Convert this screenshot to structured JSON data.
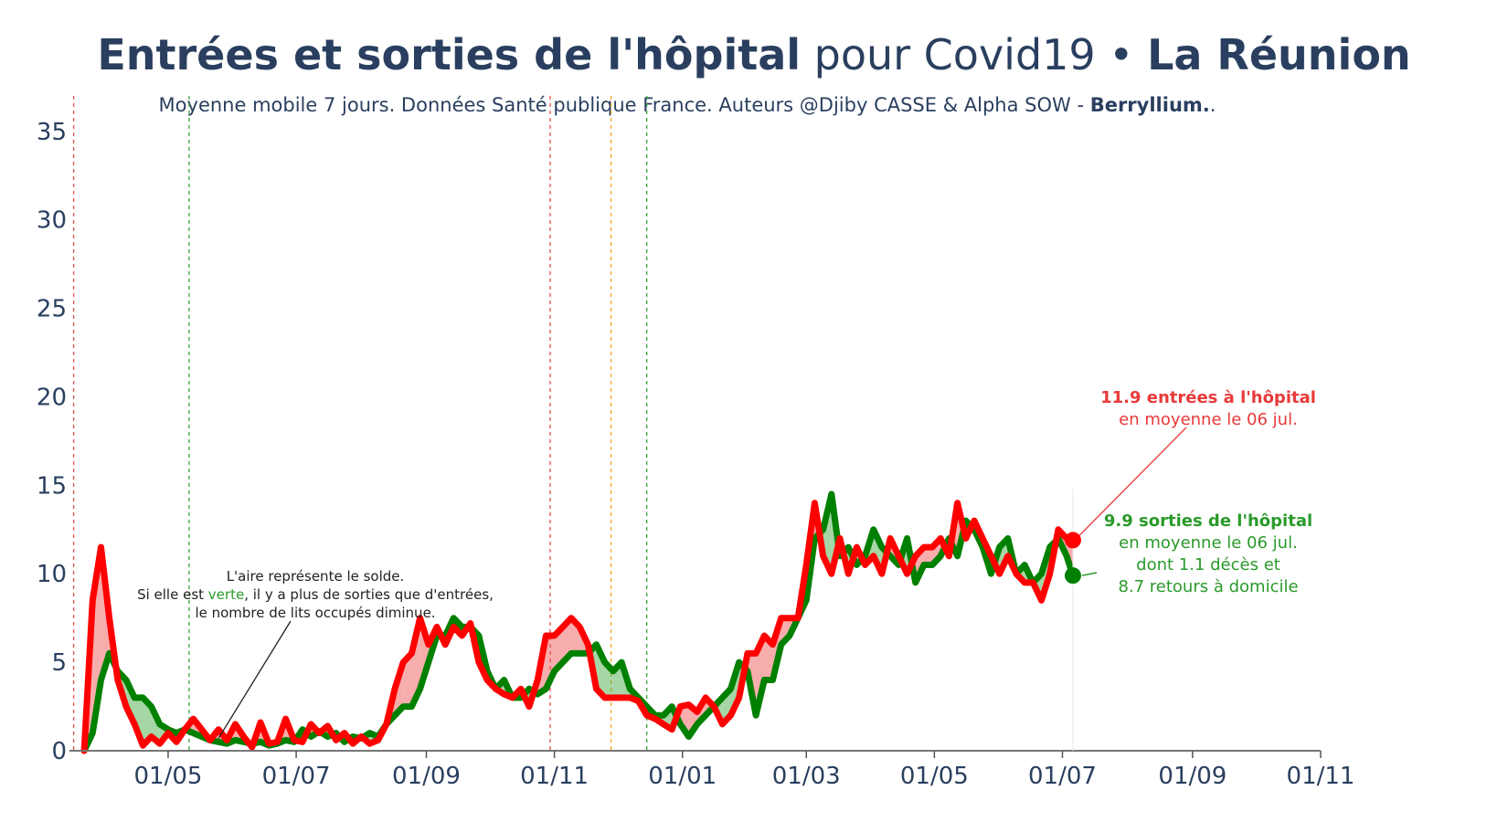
{
  "header": {
    "title_bold": "Entrées et sorties de l'hôpital",
    "title_mid": " pour Covid19 • ",
    "title_region": "La Réunion",
    "subtitle_text": "Moyenne mobile 7 jours. Données Santé publique France. Auteurs @Djiby CASSE & Alpha SOW - ",
    "subtitle_bold": "Berryllium.",
    "subtitle_end": "."
  },
  "annotations": {
    "solde_line1": "L'aire représente le solde.",
    "solde_line2_a": "Si elle est ",
    "solde_line2_green": "verte",
    "solde_line2_b": ", il y a plus de sorties que d'entrées,",
    "solde_line3": "le nombre de lits occupés diminue.",
    "entrees_bold": "11.9 entrées à l'hôpital",
    "entrees_sub": "en moyenne le 06 jul.",
    "sorties_bold": "9.9 sorties de l'hôpital",
    "sorties_sub1": "en moyenne le 06 jul.",
    "sorties_sub2": "dont 1.1 décès et",
    "sorties_sub3": "8.7 retours à domicile"
  },
  "chart_data": {
    "type": "line",
    "x_unit": "date",
    "x_range": [
      "2020-03-15",
      "2021-11-01"
    ],
    "ylim": [
      0,
      37
    ],
    "y_ticks": [
      0,
      5,
      10,
      15,
      20,
      25,
      30,
      35
    ],
    "x_ticks": [
      {
        "date": "2020-05-01",
        "label": "01/05"
      },
      {
        "date": "2020-07-01",
        "label": "01/07"
      },
      {
        "date": "2020-09-01",
        "label": "01/09"
      },
      {
        "date": "2020-11-01",
        "label": "01/11"
      },
      {
        "date": "2021-01-01",
        "label": "01/01"
      },
      {
        "date": "2021-03-01",
        "label": "01/03"
      },
      {
        "date": "2021-05-01",
        "label": "01/05"
      },
      {
        "date": "2021-07-01",
        "label": "01/07"
      },
      {
        "date": "2021-09-01",
        "label": "01/09"
      },
      {
        "date": "2021-11-01",
        "label": "01/11"
      }
    ],
    "vertical_markers": [
      {
        "date": "2020-03-17",
        "color": "#e84c4c"
      },
      {
        "date": "2020-05-11",
        "color": "#3aa33a"
      },
      {
        "date": "2020-10-30",
        "color": "#e84c4c"
      },
      {
        "date": "2020-11-28",
        "color": "#f5a623"
      },
      {
        "date": "2020-12-15",
        "color": "#3aa33a"
      }
    ],
    "series": [
      {
        "color": "#ff0000",
        "points": [
          [
            "2020-03-22",
            0
          ],
          [
            "2020-03-26",
            8.5
          ],
          [
            "2020-03-30",
            11.5
          ],
          [
            "2020-04-03",
            7.5
          ],
          [
            "2020-04-07",
            4
          ],
          [
            "2020-04-11",
            2.5
          ],
          [
            "2020-04-15",
            1.5
          ],
          [
            "2020-04-19",
            0.3
          ],
          [
            "2020-04-23",
            0.8
          ],
          [
            "2020-04-27",
            0.4
          ],
          [
            "2020-05-01",
            1
          ],
          [
            "2020-05-05",
            0.5
          ],
          [
            "2020-05-09",
            1.2
          ],
          [
            "2020-05-13",
            1.8
          ],
          [
            "2020-05-17",
            1.2
          ],
          [
            "2020-05-21",
            0.6
          ],
          [
            "2020-05-25",
            1.2
          ],
          [
            "2020-05-29",
            0.6
          ],
          [
            "2020-06-02",
            1.5
          ],
          [
            "2020-06-06",
            0.8
          ],
          [
            "2020-06-10",
            0.2
          ],
          [
            "2020-06-14",
            1.6
          ],
          [
            "2020-06-18",
            0.4
          ],
          [
            "2020-06-22",
            0.5
          ],
          [
            "2020-06-26",
            1.8
          ],
          [
            "2020-06-30",
            0.6
          ],
          [
            "2020-07-04",
            0.5
          ],
          [
            "2020-07-08",
            1.5
          ],
          [
            "2020-07-12",
            1
          ],
          [
            "2020-07-16",
            1.4
          ],
          [
            "2020-07-20",
            0.6
          ],
          [
            "2020-07-24",
            1
          ],
          [
            "2020-07-28",
            0.4
          ],
          [
            "2020-08-01",
            0.8
          ],
          [
            "2020-08-05",
            0.4
          ],
          [
            "2020-08-09",
            0.6
          ],
          [
            "2020-08-13",
            1.5
          ],
          [
            "2020-08-17",
            3.5
          ],
          [
            "2020-08-21",
            5
          ],
          [
            "2020-08-25",
            5.5
          ],
          [
            "2020-08-29",
            7.5
          ],
          [
            "2020-09-02",
            6
          ],
          [
            "2020-09-06",
            7
          ],
          [
            "2020-09-10",
            6
          ],
          [
            "2020-09-14",
            7
          ],
          [
            "2020-09-18",
            6.5
          ],
          [
            "2020-09-22",
            7.2
          ],
          [
            "2020-09-26",
            5
          ],
          [
            "2020-09-30",
            4
          ],
          [
            "2020-10-04",
            3.5
          ],
          [
            "2020-10-08",
            3.2
          ],
          [
            "2020-10-12",
            3
          ],
          [
            "2020-10-16",
            3.5
          ],
          [
            "2020-10-20",
            2.5
          ],
          [
            "2020-10-24",
            4
          ],
          [
            "2020-10-28",
            6.5
          ],
          [
            "2020-11-01",
            6.5
          ],
          [
            "2020-11-05",
            7
          ],
          [
            "2020-11-09",
            7.5
          ],
          [
            "2020-11-13",
            7
          ],
          [
            "2020-11-17",
            6
          ],
          [
            "2020-11-21",
            3.5
          ],
          [
            "2020-11-25",
            3
          ],
          [
            "2020-11-29",
            3
          ],
          [
            "2020-12-03",
            3
          ],
          [
            "2020-12-07",
            3
          ],
          [
            "2020-12-11",
            2.8
          ],
          [
            "2020-12-15",
            2
          ],
          [
            "2020-12-19",
            1.8
          ],
          [
            "2020-12-23",
            1.5
          ],
          [
            "2020-12-27",
            1.2
          ],
          [
            "2020-12-31",
            2.5
          ],
          [
            "2021-01-04",
            2.6
          ],
          [
            "2021-01-08",
            2.2
          ],
          [
            "2021-01-12",
            3
          ],
          [
            "2021-01-16",
            2.5
          ],
          [
            "2021-01-20",
            1.5
          ],
          [
            "2021-01-24",
            2
          ],
          [
            "2021-01-28",
            3
          ],
          [
            "2021-02-01",
            5.5
          ],
          [
            "2021-02-05",
            5.5
          ],
          [
            "2021-02-09",
            6.5
          ],
          [
            "2021-02-13",
            6
          ],
          [
            "2021-02-17",
            7.5
          ],
          [
            "2021-02-21",
            7.5
          ],
          [
            "2021-02-25",
            7.5
          ],
          [
            "2021-03-01",
            10.5
          ],
          [
            "2021-03-05",
            14
          ],
          [
            "2021-03-09",
            11
          ],
          [
            "2021-03-13",
            10
          ],
          [
            "2021-03-17",
            12
          ],
          [
            "2021-03-21",
            10
          ],
          [
            "2021-03-25",
            11.5
          ],
          [
            "2021-03-29",
            10.5
          ],
          [
            "2021-04-02",
            11
          ],
          [
            "2021-04-06",
            10
          ],
          [
            "2021-04-10",
            12
          ],
          [
            "2021-04-14",
            11
          ],
          [
            "2021-04-18",
            10
          ],
          [
            "2021-04-22",
            11
          ],
          [
            "2021-04-26",
            11.5
          ],
          [
            "2021-04-30",
            11.5
          ],
          [
            "2021-05-04",
            12
          ],
          [
            "2021-05-08",
            11
          ],
          [
            "2021-05-12",
            14
          ],
          [
            "2021-05-16",
            12
          ],
          [
            "2021-05-20",
            13
          ],
          [
            "2021-05-24",
            12
          ],
          [
            "2021-05-28",
            11
          ],
          [
            "2021-06-01",
            10
          ],
          [
            "2021-06-05",
            11
          ],
          [
            "2021-06-09",
            10
          ],
          [
            "2021-06-13",
            9.5
          ],
          [
            "2021-06-17",
            9.5
          ],
          [
            "2021-06-21",
            8.5
          ],
          [
            "2021-06-25",
            10
          ],
          [
            "2021-06-29",
            12.5
          ],
          [
            "2021-07-03",
            12
          ],
          [
            "2021-07-06",
            11.9
          ]
        ]
      },
      {
        "color": "#008000",
        "points": [
          [
            "2020-03-22",
            0
          ],
          [
            "2020-03-26",
            1
          ],
          [
            "2020-03-30",
            4
          ],
          [
            "2020-04-03",
            5.5
          ],
          [
            "2020-04-07",
            4.5
          ],
          [
            "2020-04-11",
            4
          ],
          [
            "2020-04-15",
            3
          ],
          [
            "2020-04-19",
            3
          ],
          [
            "2020-04-23",
            2.5
          ],
          [
            "2020-04-27",
            1.5
          ],
          [
            "2020-05-01",
            1.2
          ],
          [
            "2020-05-05",
            1
          ],
          [
            "2020-05-09",
            1.2
          ],
          [
            "2020-05-13",
            1
          ],
          [
            "2020-05-17",
            0.8
          ],
          [
            "2020-05-21",
            0.6
          ],
          [
            "2020-05-25",
            0.5
          ],
          [
            "2020-05-29",
            0.4
          ],
          [
            "2020-06-02",
            0.6
          ],
          [
            "2020-06-06",
            0.5
          ],
          [
            "2020-06-10",
            0.4
          ],
          [
            "2020-06-14",
            0.5
          ],
          [
            "2020-06-18",
            0.3
          ],
          [
            "2020-06-22",
            0.4
          ],
          [
            "2020-06-26",
            0.6
          ],
          [
            "2020-06-30",
            0.5
          ],
          [
            "2020-07-04",
            1.2
          ],
          [
            "2020-07-08",
            0.8
          ],
          [
            "2020-07-12",
            1.1
          ],
          [
            "2020-07-16",
            0.8
          ],
          [
            "2020-07-20",
            1
          ],
          [
            "2020-07-24",
            0.5
          ],
          [
            "2020-07-28",
            0.8
          ],
          [
            "2020-08-01",
            0.7
          ],
          [
            "2020-08-05",
            1
          ],
          [
            "2020-08-09",
            0.8
          ],
          [
            "2020-08-13",
            1.5
          ],
          [
            "2020-08-17",
            2
          ],
          [
            "2020-08-21",
            2.5
          ],
          [
            "2020-08-25",
            2.5
          ],
          [
            "2020-08-29",
            3.5
          ],
          [
            "2020-09-02",
            5
          ],
          [
            "2020-09-06",
            6.5
          ],
          [
            "2020-09-10",
            6.5
          ],
          [
            "2020-09-14",
            7.5
          ],
          [
            "2020-09-18",
            7
          ],
          [
            "2020-09-22",
            7
          ],
          [
            "2020-09-26",
            6.5
          ],
          [
            "2020-09-30",
            4.5
          ],
          [
            "2020-10-04",
            3.5
          ],
          [
            "2020-10-08",
            4
          ],
          [
            "2020-10-12",
            3
          ],
          [
            "2020-10-16",
            3
          ],
          [
            "2020-10-20",
            3.5
          ],
          [
            "2020-10-24",
            3.2
          ],
          [
            "2020-10-28",
            3.5
          ],
          [
            "2020-11-01",
            4.5
          ],
          [
            "2020-11-05",
            5
          ],
          [
            "2020-11-09",
            5.5
          ],
          [
            "2020-11-13",
            5.5
          ],
          [
            "2020-11-17",
            5.5
          ],
          [
            "2020-11-21",
            6
          ],
          [
            "2020-11-25",
            5
          ],
          [
            "2020-11-29",
            4.5
          ],
          [
            "2020-12-03",
            5
          ],
          [
            "2020-12-07",
            3.5
          ],
          [
            "2020-12-11",
            3
          ],
          [
            "2020-12-15",
            2.5
          ],
          [
            "2020-12-19",
            2
          ],
          [
            "2020-12-23",
            2
          ],
          [
            "2020-12-27",
            2.5
          ],
          [
            "2020-12-31",
            1.5
          ],
          [
            "2021-01-04",
            0.8
          ],
          [
            "2021-01-08",
            1.5
          ],
          [
            "2021-01-12",
            2
          ],
          [
            "2021-01-16",
            2.5
          ],
          [
            "2021-01-20",
            3
          ],
          [
            "2021-01-24",
            3.5
          ],
          [
            "2021-01-28",
            5
          ],
          [
            "2021-02-01",
            4.5
          ],
          [
            "2021-02-05",
            2
          ],
          [
            "2021-02-09",
            4
          ],
          [
            "2021-02-13",
            4
          ],
          [
            "2021-02-17",
            6
          ],
          [
            "2021-02-21",
            6.5
          ],
          [
            "2021-02-25",
            7.5
          ],
          [
            "2021-03-01",
            8.5
          ],
          [
            "2021-03-05",
            12
          ],
          [
            "2021-03-09",
            12.5
          ],
          [
            "2021-03-13",
            14.5
          ],
          [
            "2021-03-17",
            11
          ],
          [
            "2021-03-21",
            11.5
          ],
          [
            "2021-03-25",
            10.5
          ],
          [
            "2021-03-29",
            11
          ],
          [
            "2021-04-02",
            12.5
          ],
          [
            "2021-04-06",
            11.5
          ],
          [
            "2021-04-10",
            11
          ],
          [
            "2021-04-14",
            10.5
          ],
          [
            "2021-04-18",
            12
          ],
          [
            "2021-04-22",
            9.5
          ],
          [
            "2021-04-26",
            10.5
          ],
          [
            "2021-04-30",
            10.5
          ],
          [
            "2021-05-04",
            11
          ],
          [
            "2021-05-08",
            12
          ],
          [
            "2021-05-12",
            11
          ],
          [
            "2021-05-16",
            13
          ],
          [
            "2021-05-20",
            12.5
          ],
          [
            "2021-05-24",
            11.5
          ],
          [
            "2021-05-28",
            10
          ],
          [
            "2021-06-01",
            11.5
          ],
          [
            "2021-06-05",
            12
          ],
          [
            "2021-06-09",
            10
          ],
          [
            "2021-06-13",
            10.5
          ],
          [
            "2021-06-17",
            9.5
          ],
          [
            "2021-06-21",
            10
          ],
          [
            "2021-06-25",
            11.5
          ],
          [
            "2021-06-29",
            12
          ],
          [
            "2021-07-03",
            11
          ],
          [
            "2021-07-06",
            9.9
          ]
        ]
      }
    ]
  }
}
